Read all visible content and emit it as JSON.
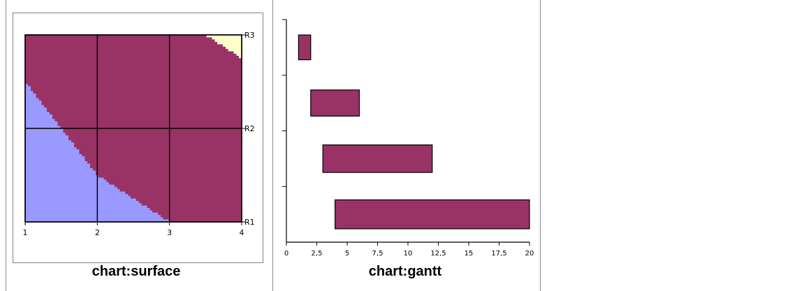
{
  "captions": {
    "surface": "chart:surface",
    "gantt": "chart:gantt"
  },
  "colors": {
    "low": "#9999ff",
    "mid": "#993366",
    "high": "#ffffcc",
    "grid": "#000000",
    "frame": "#808080"
  },
  "chart_data": [
    {
      "type": "surface",
      "title": "",
      "x_ticks": [
        "1",
        "2",
        "3",
        "4"
      ],
      "series": [
        {
          "name": "R1",
          "values": [
            2,
            4,
            5,
            6
          ]
        },
        {
          "name": "R2",
          "values": [
            4,
            6,
            7,
            8
          ]
        },
        {
          "name": "R3",
          "values": [
            6,
            8,
            9,
            10
          ]
        }
      ],
      "bands": [
        {
          "range": [
            0,
            5
          ],
          "color": "#9999ff"
        },
        {
          "range": [
            5,
            9.5
          ],
          "color": "#993366"
        },
        {
          "range": [
            9.5,
            12
          ],
          "color": "#ffffcc"
        }
      ],
      "xlim": [
        1,
        4
      ],
      "grid": true
    },
    {
      "type": "bar",
      "subtype": "gantt",
      "title": "",
      "series": [
        {
          "start": 4,
          "end": 20
        },
        {
          "start": 3,
          "end": 12
        },
        {
          "start": 2,
          "end": 6
        },
        {
          "start": 1,
          "end": 2
        }
      ],
      "xlim": [
        0,
        20
      ],
      "x_ticks": [
        "0",
        "2,5",
        "5",
        "7,5",
        "10",
        "12,5",
        "15",
        "17,5",
        "20"
      ],
      "grid": false
    }
  ]
}
